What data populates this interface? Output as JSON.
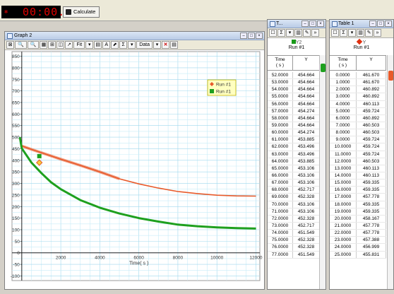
{
  "timer": {
    "display": "00:00.0"
  },
  "calculate": {
    "label": "Calculate"
  },
  "graph": {
    "title": "Graph 2",
    "toolbar": [
      "⊠",
      "🔍",
      "🔍",
      "▦",
      "⊞",
      "◫",
      "↗",
      "Fit",
      "▾",
      "▤",
      "A",
      "⬈",
      "Σ",
      "▾",
      "Data",
      "▾",
      "✕",
      "▤"
    ],
    "legend": [
      "Run #1",
      "Run #1"
    ],
    "y_ticks": [
      "850",
      "800",
      "750",
      "700",
      "650",
      "600",
      "550",
      "500",
      "450",
      "400",
      "350",
      "300",
      "250",
      "200",
      "150",
      "100",
      "50",
      "0",
      "-50",
      "-100"
    ],
    "x_ticks": [
      "2000",
      "4000",
      "6000",
      "8000",
      "10000",
      "12000"
    ],
    "x_label": "Time( s )"
  },
  "chart_data": {
    "type": "line",
    "xlabel": "Time( s )",
    "ylabel": "",
    "xlim": [
      -500,
      12200
    ],
    "ylim": [
      -120,
      870
    ],
    "series": [
      {
        "name": "Run #1",
        "color": "#e85a2a",
        "marker": "diamond",
        "x": [
          0,
          500,
          1000,
          2000,
          3000,
          4000,
          5000,
          6000,
          7000,
          8000,
          9000,
          10000,
          11000,
          12000
        ],
        "y": [
          462,
          447,
          433,
          405,
          378,
          350,
          320,
          298,
          280,
          265,
          256,
          249,
          246,
          245
        ]
      },
      {
        "name": "Run #1",
        "color": "#1ea01e",
        "marker": "square",
        "x": [
          -100,
          0,
          500,
          1000,
          1500,
          2000,
          3000,
          4000,
          5000,
          6000,
          7000,
          8000,
          9000,
          10000,
          11000,
          12000
        ],
        "y": [
          500,
          452,
          390,
          345,
          305,
          275,
          228,
          195,
          170,
          150,
          135,
          122,
          115,
          110,
          107,
          105
        ]
      }
    ],
    "markers": [
      {
        "series": 0,
        "x": 900,
        "y": 390
      },
      {
        "series": 1,
        "x": 900,
        "y": 418
      }
    ]
  },
  "table2": {
    "title": "T...",
    "header_label": "Y2",
    "run": "Run #1",
    "col_time": "Time\n( s )",
    "col_y": "Y",
    "rows": [
      [
        "52.0000",
        "454.664"
      ],
      [
        "53.0000",
        "454.664"
      ],
      [
        "54.0000",
        "454.664"
      ],
      [
        "55.0000",
        "454.664"
      ],
      [
        "56.0000",
        "454.664"
      ],
      [
        "57.0000",
        "454.274"
      ],
      [
        "58.0000",
        "454.664"
      ],
      [
        "59.0000",
        "454.664"
      ],
      [
        "60.0000",
        "454.274"
      ],
      [
        "61.0000",
        "453.885"
      ],
      [
        "62.0000",
        "453.496"
      ],
      [
        "63.0000",
        "453.496"
      ],
      [
        "64.0000",
        "453.885"
      ],
      [
        "65.0000",
        "453.106"
      ],
      [
        "66.0000",
        "453.106"
      ],
      [
        "67.0000",
        "453.106"
      ],
      [
        "68.0000",
        "452.717"
      ],
      [
        "69.0000",
        "452.328"
      ],
      [
        "70.0000",
        "453.106"
      ],
      [
        "71.0000",
        "453.106"
      ],
      [
        "72.0000",
        "452.328"
      ],
      [
        "73.0000",
        "452.717"
      ],
      [
        "74.0000",
        "451.549"
      ],
      [
        "75.0000",
        "452.328"
      ],
      [
        "76.0000",
        "452.328"
      ],
      [
        "77.0000",
        "451.549"
      ]
    ]
  },
  "table1": {
    "title": "Table 1",
    "header_label": "Y",
    "run": "Run #1",
    "col_time": "Time\n( s )",
    "col_y": "Y",
    "rows": [
      [
        "0.0000",
        "461.670"
      ],
      [
        "1.0000",
        "461.670"
      ],
      [
        "2.0000",
        "460.892"
      ],
      [
        "3.0000",
        "460.892"
      ],
      [
        "4.0000",
        "460.113"
      ],
      [
        "5.0000",
        "459.724"
      ],
      [
        "6.0000",
        "460.892"
      ],
      [
        "7.0000",
        "460.503"
      ],
      [
        "8.0000",
        "460.503"
      ],
      [
        "9.0000",
        "459.724"
      ],
      [
        "10.0000",
        "459.724"
      ],
      [
        "11.0000",
        "459.724"
      ],
      [
        "12.0000",
        "460.503"
      ],
      [
        "13.0000",
        "460.113"
      ],
      [
        "14.0000",
        "460.113"
      ],
      [
        "15.0000",
        "459.335"
      ],
      [
        "16.0000",
        "459.335"
      ],
      [
        "17.0000",
        "457.778"
      ],
      [
        "18.0000",
        "459.335"
      ],
      [
        "19.0000",
        "459.335"
      ],
      [
        "20.0000",
        "458.167"
      ],
      [
        "21.0000",
        "457.778"
      ],
      [
        "22.0000",
        "457.778"
      ],
      [
        "23.0000",
        "457.388"
      ],
      [
        "24.0000",
        "456.999"
      ],
      [
        "25.0000",
        "455.831"
      ]
    ]
  }
}
